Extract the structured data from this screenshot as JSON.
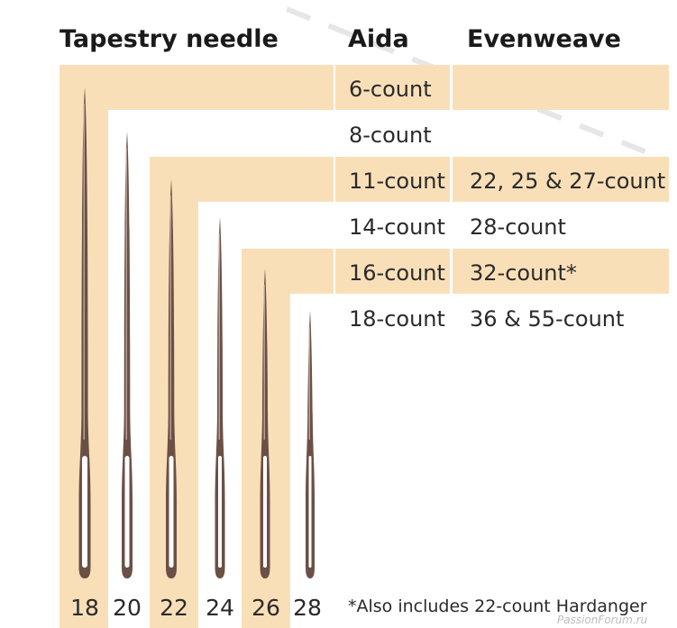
{
  "headers": {
    "needle": "Tapestry needle",
    "aida": "Aida",
    "evenweave": "Evenweave"
  },
  "rows": [
    {
      "aida": "6-count",
      "evenweave": "",
      "shaded": true
    },
    {
      "aida": "8-count",
      "evenweave": "",
      "shaded": false
    },
    {
      "aida": "11-count",
      "evenweave": "22, 25 & 27-count",
      "shaded": true
    },
    {
      "aida": "14-count",
      "evenweave": "28-count",
      "shaded": false
    },
    {
      "aida": "16-count",
      "evenweave": "32-count*",
      "shaded": true
    },
    {
      "aida": "18-count",
      "evenweave": "36 & 55-count",
      "shaded": false
    }
  ],
  "needle_sizes": [
    "18",
    "20",
    "22",
    "24",
    "26",
    "28"
  ],
  "footnote": "*Also includes 22-count Hardanger",
  "watermark": "PassionForum.ru",
  "colors": {
    "band": "#f9dfb8",
    "needle": "#6b5046",
    "needle_shine": "#c9b3a8",
    "needle_eye": "#ffffff"
  }
}
